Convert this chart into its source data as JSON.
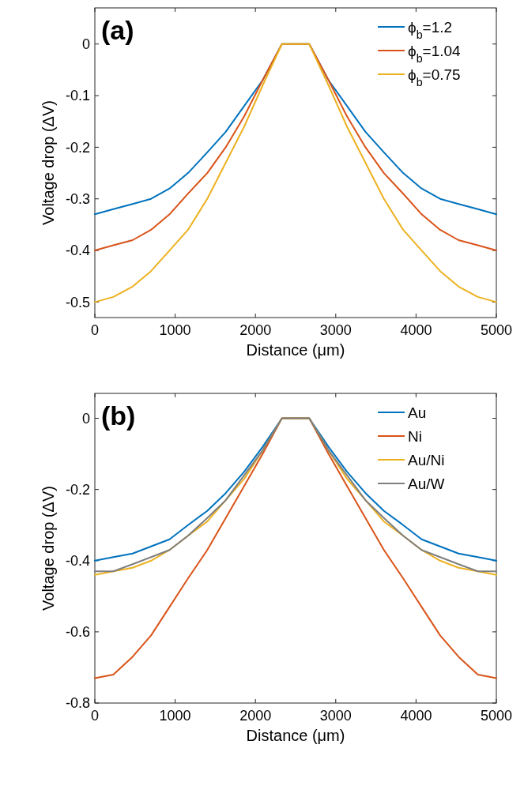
{
  "chart_data": [
    {
      "type": "line",
      "title": "(a)",
      "xlabel": "Distance (μm)",
      "ylabel": "Voltage drop (ΔV)",
      "x": [
        0,
        230,
        470,
        700,
        930,
        1160,
        1400,
        1630,
        1860,
        2090,
        2330,
        2670,
        2910,
        3140,
        3370,
        3600,
        3840,
        4070,
        4300,
        4530,
        4770,
        5000
      ],
      "xlim": [
        0,
        5000
      ],
      "xticks": [
        0,
        1000,
        2000,
        3000,
        4000,
        5000
      ],
      "ylim": [
        -0.53,
        0.07
      ],
      "yticks": [
        0,
        -0.1,
        -0.2,
        -0.3,
        -0.4,
        -0.5
      ],
      "legend": "top right",
      "grid": false,
      "series": [
        {
          "name": "ϕ$_{b}$=1.2",
          "color": "#0072bd",
          "values": [
            -0.33,
            -0.32,
            -0.31,
            -0.3,
            -0.28,
            -0.25,
            -0.21,
            -0.17,
            -0.12,
            -0.07,
            0,
            0,
            -0.07,
            -0.12,
            -0.17,
            -0.21,
            -0.25,
            -0.28,
            -0.3,
            -0.31,
            -0.32,
            -0.33
          ]
        },
        {
          "name": "ϕ$_{b}$=1.04",
          "color": "#d95319",
          "values": [
            -0.4,
            -0.39,
            -0.38,
            -0.36,
            -0.33,
            -0.29,
            -0.25,
            -0.2,
            -0.14,
            -0.07,
            0,
            0,
            -0.07,
            -0.14,
            -0.2,
            -0.25,
            -0.29,
            -0.33,
            -0.36,
            -0.38,
            -0.39,
            -0.4
          ]
        },
        {
          "name": "ϕ$_{b}$=0.75",
          "color": "#edb120",
          "values": [
            -0.5,
            -0.49,
            -0.47,
            -0.44,
            -0.4,
            -0.36,
            -0.3,
            -0.23,
            -0.16,
            -0.08,
            0,
            0,
            -0.08,
            -0.16,
            -0.23,
            -0.3,
            -0.36,
            -0.4,
            -0.44,
            -0.47,
            -0.49,
            -0.5
          ]
        }
      ]
    },
    {
      "type": "line",
      "title": "(b)",
      "xlabel": "Distance (μm)",
      "ylabel": "Voltage drop (ΔV)",
      "x": [
        0,
        230,
        470,
        700,
        930,
        1160,
        1400,
        1630,
        1860,
        2090,
        2330,
        2670,
        2910,
        3140,
        3370,
        3600,
        3840,
        4070,
        4300,
        4530,
        4770,
        5000
      ],
      "xlim": [
        0,
        5000
      ],
      "xticks": [
        0,
        1000,
        2000,
        3000,
        4000,
        5000
      ],
      "ylim": [
        -0.8,
        0.07
      ],
      "yticks": [
        0,
        -0.2,
        -0.4,
        -0.6,
        -0.8
      ],
      "legend": "top right",
      "grid": false,
      "series": [
        {
          "name": "Au",
          "color": "#0072bd",
          "values": [
            -0.4,
            -0.39,
            -0.38,
            -0.36,
            -0.34,
            -0.3,
            -0.26,
            -0.21,
            -0.15,
            -0.08,
            0,
            0,
            -0.08,
            -0.15,
            -0.21,
            -0.26,
            -0.3,
            -0.34,
            -0.36,
            -0.38,
            -0.39,
            -0.4
          ]
        },
        {
          "name": "Ni",
          "color": "#d95319",
          "values": [
            -0.73,
            -0.72,
            -0.67,
            -0.61,
            -0.53,
            -0.45,
            -0.37,
            -0.28,
            -0.19,
            -0.1,
            0,
            0,
            -0.1,
            -0.19,
            -0.28,
            -0.37,
            -0.45,
            -0.53,
            -0.61,
            -0.67,
            -0.72,
            -0.73
          ]
        },
        {
          "name": "Au/Ni",
          "color": "#edb120",
          "values": [
            -0.44,
            -0.43,
            -0.42,
            -0.4,
            -0.37,
            -0.33,
            -0.29,
            -0.23,
            -0.17,
            -0.09,
            0,
            0,
            -0.09,
            -0.17,
            -0.23,
            -0.29,
            -0.33,
            -0.37,
            -0.4,
            -0.42,
            -0.43,
            -0.44
          ]
        },
        {
          "name": "Au/W",
          "color": "#7f7f7f",
          "values": [
            -0.43,
            -0.43,
            -0.41,
            -0.39,
            -0.37,
            -0.33,
            -0.28,
            -0.23,
            -0.16,
            -0.09,
            0,
            0,
            -0.09,
            -0.16,
            -0.23,
            -0.28,
            -0.33,
            -0.37,
            -0.39,
            -0.41,
            -0.43,
            -0.43
          ]
        }
      ]
    }
  ]
}
